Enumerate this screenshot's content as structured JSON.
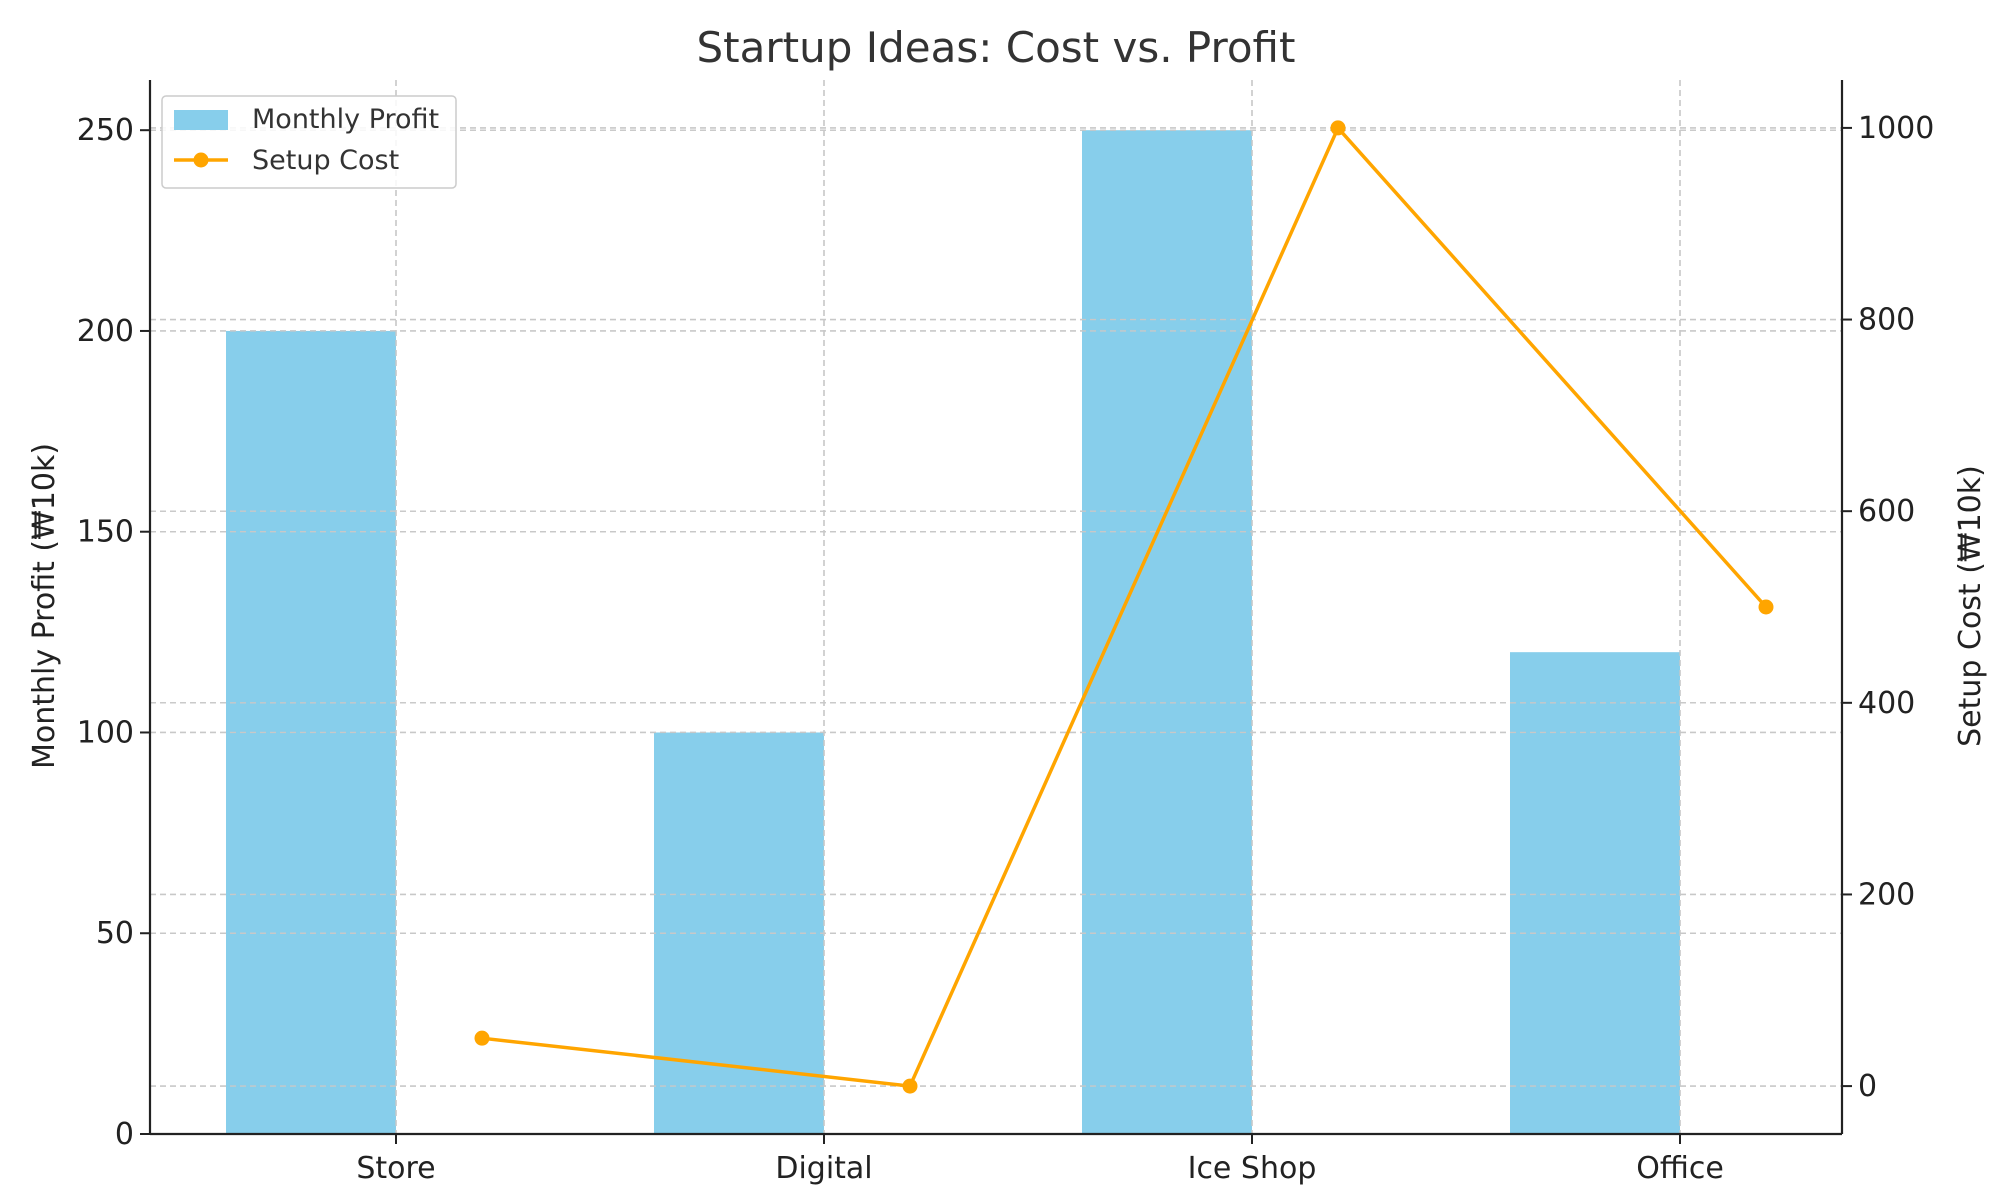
{
  "chart_data": {
    "type": "bar",
    "title": "Startup Ideas: Cost vs. Profit",
    "categories": [
      "Store",
      "Digital",
      "Ice Shop",
      "Office"
    ],
    "series": [
      {
        "name": "Monthly Profit",
        "type": "bar",
        "axis": "left",
        "values": [
          200,
          100,
          250,
          120
        ],
        "color": "#87CEEB"
      },
      {
        "name": "Setup Cost",
        "type": "line",
        "axis": "right",
        "values": [
          50,
          0,
          1000,
          500
        ],
        "color": "#FFA500"
      }
    ],
    "ylabel": "Monthly Profit (₩10k)",
    "y2label": "Setup Cost (₩10k)",
    "ylim": [
      0,
      262.5
    ],
    "y2lim": [
      -50,
      1050
    ],
    "yticks": [
      "0",
      "50",
      "100",
      "150",
      "200",
      "250"
    ],
    "y2ticks": [
      "0",
      "200",
      "400",
      "600",
      "800",
      "1000"
    ],
    "grid": true,
    "legend_position": "top-left"
  }
}
